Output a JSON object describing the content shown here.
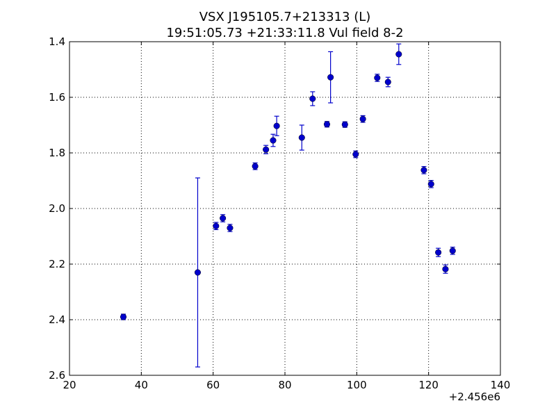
{
  "chart_data": {
    "type": "scatter",
    "title_line1": "VSX J195105.7+213313 (L)",
    "title_line2": "19:51:05.73 +21:33:11.8 Vul field 8-2",
    "xlabel": "",
    "ylabel": "",
    "x_offset_label": "+2.456e6",
    "xlim": [
      20,
      140
    ],
    "ylim": [
      2.6,
      1.4
    ],
    "y_inverted": true,
    "grid": true,
    "grid_style": "dotted",
    "x_ticks": [
      20,
      40,
      60,
      80,
      100,
      120,
      140
    ],
    "y_ticks": [
      1.4,
      1.6,
      1.8,
      2.0,
      2.2,
      2.4,
      2.6
    ],
    "x_tick_labels": [
      "20",
      "40",
      "60",
      "80",
      "100",
      "120",
      "140"
    ],
    "y_tick_labels": [
      "1.4",
      "1.6",
      "1.8",
      "2.0",
      "2.2",
      "2.4",
      "2.6"
    ],
    "marker_color": "#0000cc",
    "errorbar_color": "#0000cc",
    "points": [
      {
        "x": 2456035.0,
        "y": 2.39,
        "err": 0.01
      },
      {
        "x": 2456055.7,
        "y": 2.23,
        "err": 0.34
      },
      {
        "x": 2456060.8,
        "y": 2.063,
        "err": 0.013
      },
      {
        "x": 2456062.7,
        "y": 2.035,
        "err": 0.013
      },
      {
        "x": 2456064.7,
        "y": 2.07,
        "err": 0.013
      },
      {
        "x": 2456071.7,
        "y": 1.848,
        "err": 0.012
      },
      {
        "x": 2456074.7,
        "y": 1.788,
        "err": 0.015
      },
      {
        "x": 2456076.7,
        "y": 1.755,
        "err": 0.022
      },
      {
        "x": 2456077.7,
        "y": 1.703,
        "err": 0.035
      },
      {
        "x": 2456084.7,
        "y": 1.745,
        "err": 0.045
      },
      {
        "x": 2456087.7,
        "y": 1.605,
        "err": 0.025
      },
      {
        "x": 2456091.7,
        "y": 1.697,
        "err": 0.01
      },
      {
        "x": 2456092.7,
        "y": 1.528,
        "err": 0.092
      },
      {
        "x": 2456096.7,
        "y": 1.698,
        "err": 0.01
      },
      {
        "x": 2456099.7,
        "y": 1.805,
        "err": 0.012
      },
      {
        "x": 2456101.7,
        "y": 1.678,
        "err": 0.012
      },
      {
        "x": 2456105.7,
        "y": 1.53,
        "err": 0.013
      },
      {
        "x": 2456108.7,
        "y": 1.545,
        "err": 0.017
      },
      {
        "x": 2456111.7,
        "y": 1.445,
        "err": 0.037
      },
      {
        "x": 2456118.7,
        "y": 1.862,
        "err": 0.013
      },
      {
        "x": 2456120.7,
        "y": 1.912,
        "err": 0.013
      },
      {
        "x": 2456122.7,
        "y": 2.158,
        "err": 0.015
      },
      {
        "x": 2456124.7,
        "y": 2.218,
        "err": 0.015
      },
      {
        "x": 2456126.7,
        "y": 2.152,
        "err": 0.013
      }
    ]
  }
}
